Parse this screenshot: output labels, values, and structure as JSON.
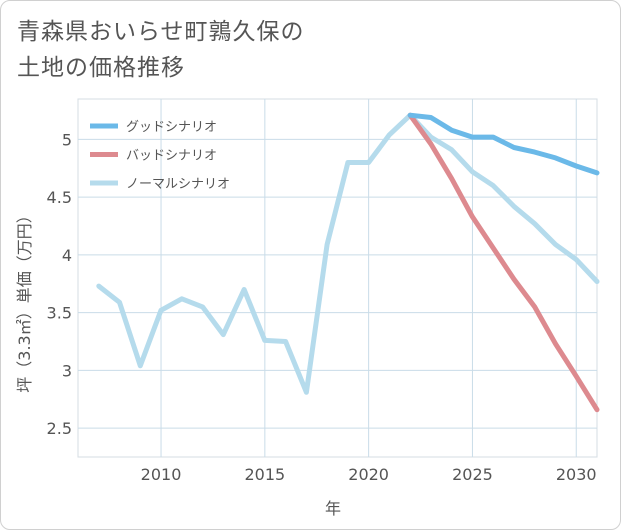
{
  "title": "青森県おいらせ町鶉久保の\n土地の価格推移",
  "chart_data": {
    "type": "line",
    "xlabel": "年",
    "ylabel": "坪（3.3㎡）単価（万円）",
    "xlim": [
      2006,
      2031
    ],
    "ylim": [
      2.25,
      5.35
    ],
    "x_ticks": [
      2010,
      2015,
      2020,
      2025,
      2030
    ],
    "y_ticks": [
      2.5,
      3,
      3.5,
      4,
      4.5,
      5
    ],
    "grid": true,
    "legend_position": "top-left",
    "series": [
      {
        "name": "グッドシナリオ",
        "color": "#6bb9e8",
        "x": [
          2022,
          2023,
          2024,
          2025,
          2026,
          2027,
          2028,
          2029,
          2030,
          2031
        ],
        "y": [
          5.21,
          5.19,
          5.08,
          5.02,
          5.02,
          4.93,
          4.89,
          4.84,
          4.77,
          4.71
        ]
      },
      {
        "name": "バッドシナリオ",
        "color": "#dd8a8f",
        "x": [
          2022,
          2023,
          2024,
          2025,
          2026,
          2027,
          2028,
          2029,
          2030,
          2031
        ],
        "y": [
          5.21,
          4.96,
          4.66,
          4.33,
          4.06,
          3.79,
          3.55,
          3.23,
          2.95,
          2.66
        ]
      },
      {
        "name": "ノーマルシナリオ",
        "color": "#b5dbec",
        "x": [
          2007,
          2008,
          2009,
          2010,
          2011,
          2012,
          2013,
          2014,
          2015,
          2016,
          2017,
          2018,
          2019,
          2020,
          2021,
          2022,
          2023,
          2024,
          2025,
          2026,
          2027,
          2028,
          2029,
          2030,
          2031
        ],
        "y": [
          3.73,
          3.59,
          3.04,
          3.52,
          3.62,
          3.55,
          3.31,
          3.7,
          3.26,
          3.25,
          2.81,
          4.09,
          4.8,
          4.8,
          5.04,
          5.21,
          5.02,
          4.91,
          4.72,
          4.6,
          4.42,
          4.27,
          4.09,
          3.96,
          3.77
        ]
      }
    ]
  }
}
